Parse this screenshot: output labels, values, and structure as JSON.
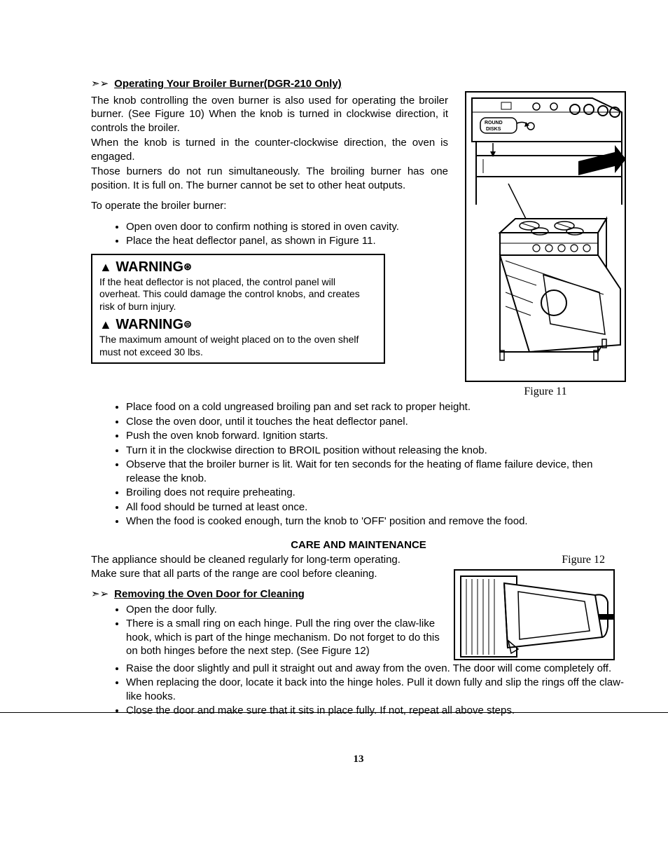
{
  "section1": {
    "title": "Operating Your Broiler Burner(DGR-210 Only)",
    "p1": "The knob controlling the oven burner is also used for operating the broiler burner. (See Figure 10)  When the knob is turned in clockwise direction, it controls the broiler.",
    "p2": "When the knob is turned in the counter-clockwise direction, the oven is engaged.",
    "p3": "Those burners do not run simultaneously.  The broiling burner has one position. It is full on.  The burner cannot be set to other heat outputs.",
    "operate_label": "To operate the broiler burner:",
    "operate_first": [
      "Open oven door to confirm nothing is stored in oven cavity.",
      "Place the heat deflector panel, as shown in Figure 11."
    ],
    "warning1": {
      "title": "WARNING",
      "body": "If the heat deflector is not placed, the control panel will overheat.  This could damage the control knobs, and creates risk of burn injury."
    },
    "warning2": {
      "title": "WARNING",
      "body": "The maximum amount of weight placed on to the oven shelf must not exceed 30 lbs."
    },
    "figure11_caption": "Figure 11",
    "operate_second": [
      "Place food on a cold ungreased broiling pan and set rack to proper height.",
      "Close the oven door, until it touches the heat deflector panel.",
      "Push the oven knob forward. Ignition starts.",
      "Turn it in the clockwise direction to BROIL position without releasing the knob.",
      "Observe that the broiler burner is lit. Wait for ten seconds for the heating of flame failure device, then release the knob.",
      "Broiling does not require preheating.",
      "All food should be turned at least once.",
      "When the food is cooked enough, turn the knob to 'OFF' position and remove the food."
    ]
  },
  "care": {
    "title": "CARE AND MAINTENANCE",
    "intro1": "The appliance should be cleaned regularly for long-term operating.",
    "intro2": "Make sure that all parts of the range are cool before cleaning.",
    "figure12_caption": "Figure 12",
    "remove_title": "Removing the Oven Door for Cleaning",
    "steps": [
      "Open the door fully.",
      "There is a small ring on each hinge. Pull the ring over the claw-like hook, which is part of the hinge mechanism. Do not forget to do this on both hinges before the next step. (See Figure 12)",
      "Raise the door slightly and pull it straight out and away from the oven.  The door will come completely off.",
      "When replacing the door, locate it back into the hinge holes.  Pull it down fully and slip the rings off the claw-like hooks.",
      "Close the door and make sure that it sits in place fully. If not, repeat all above steps."
    ]
  },
  "page_number": "13",
  "fig11_label1": "ROUND",
  "fig11_label2": "DISKS"
}
